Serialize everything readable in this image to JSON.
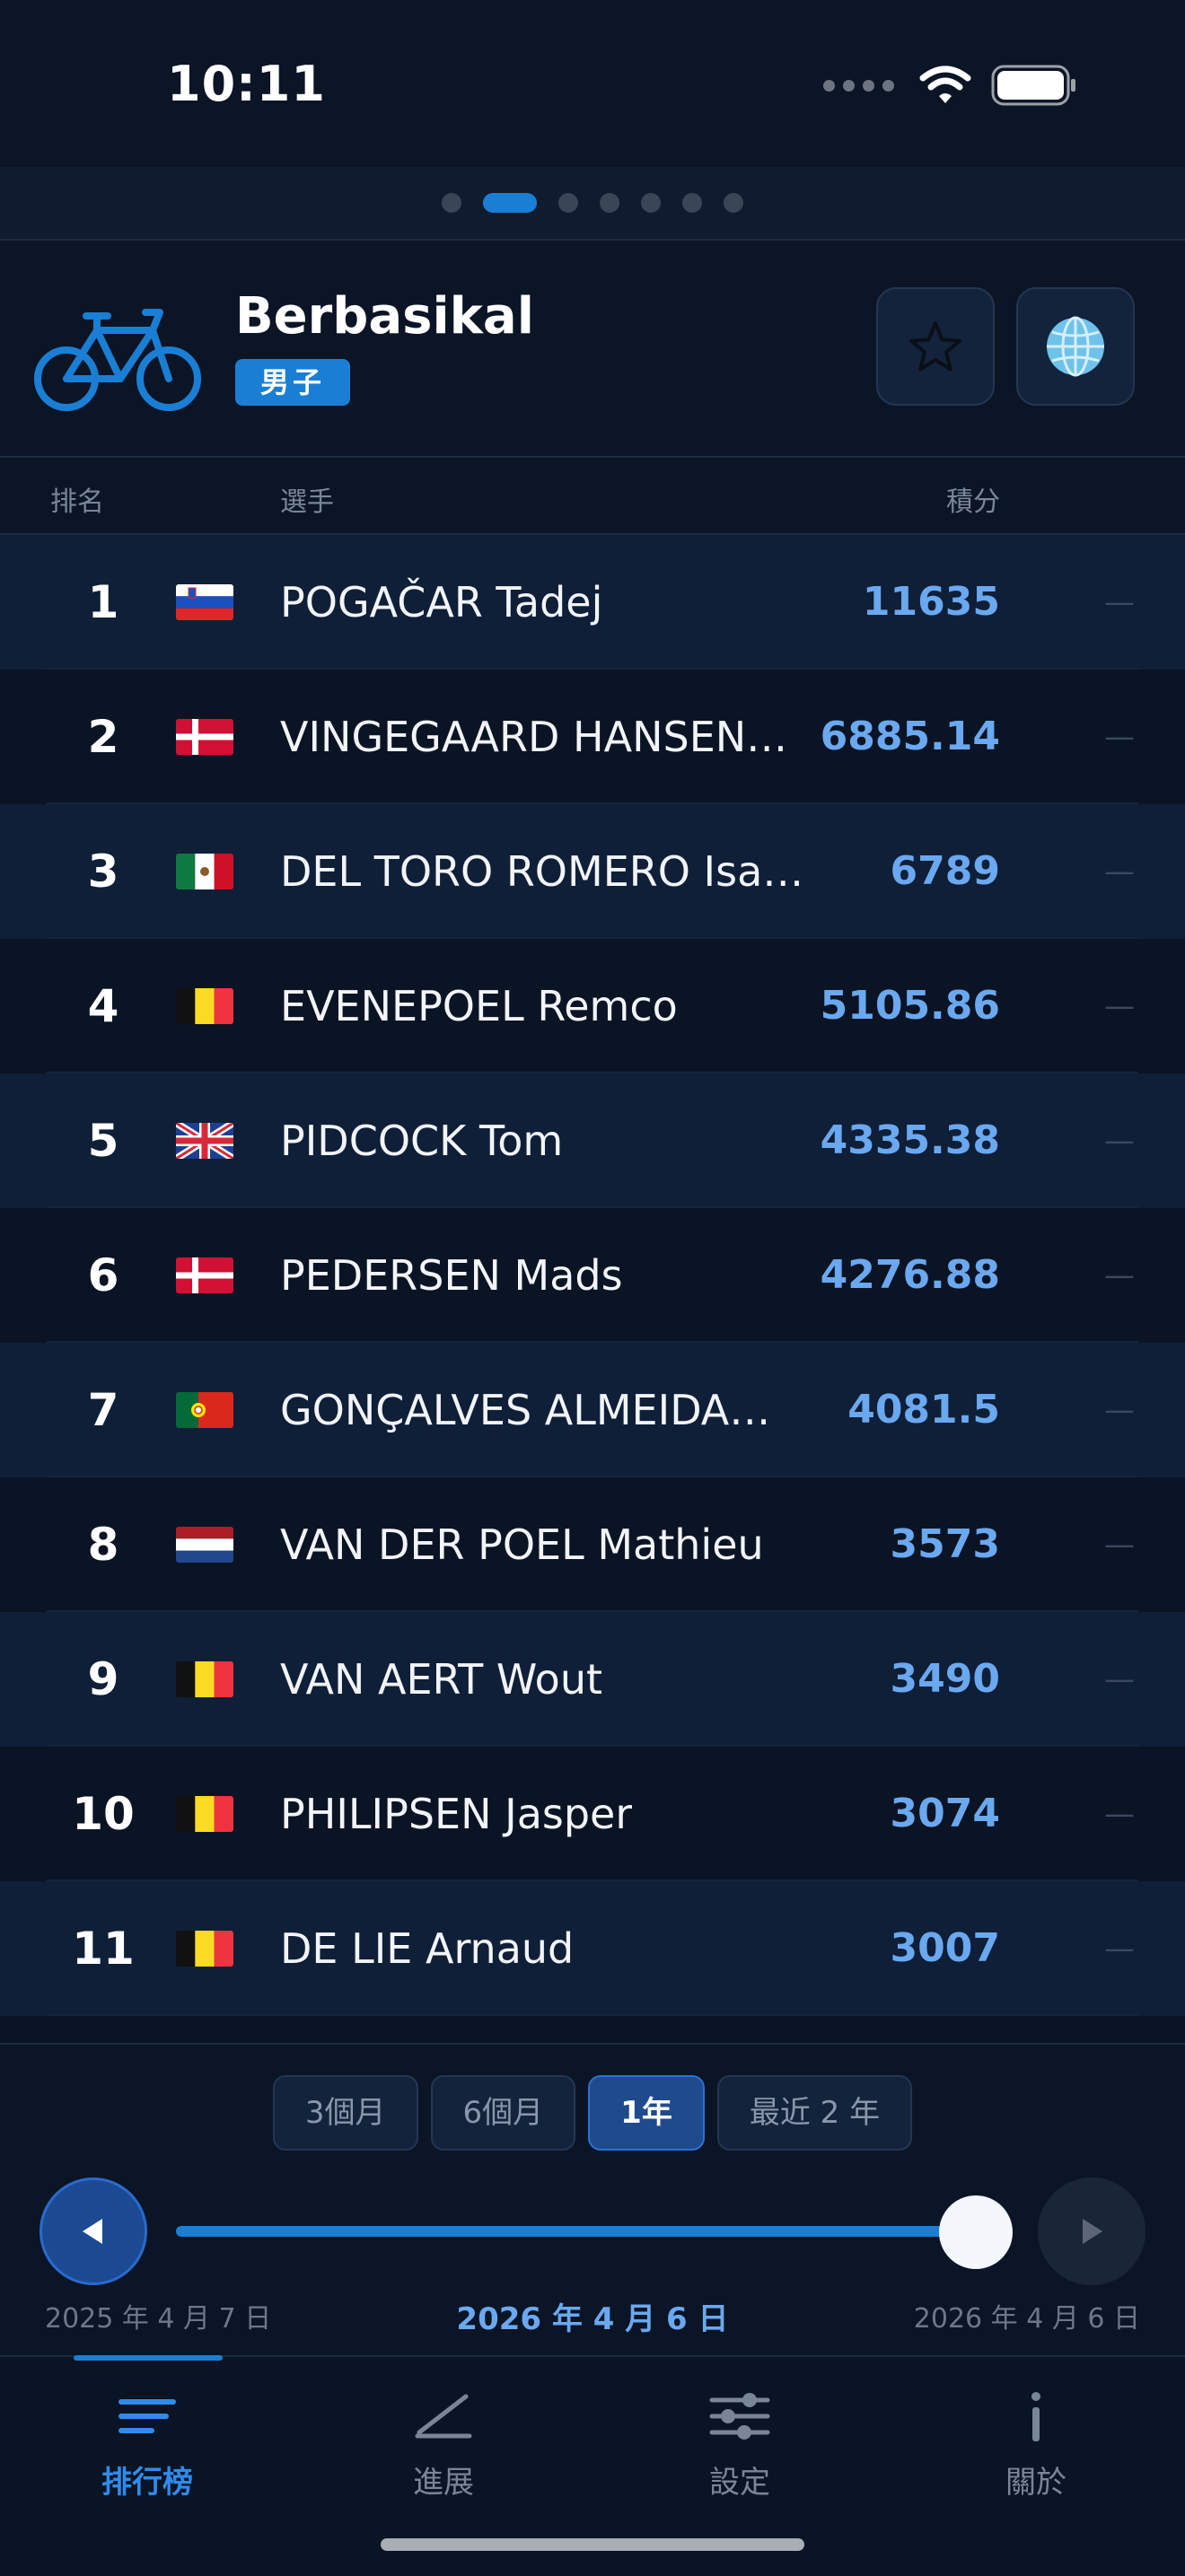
{
  "status_bar": {
    "time": "10:11"
  },
  "page_indicator": {
    "count": 7,
    "active_index": 1
  },
  "header": {
    "sport_name": "Berbasikal",
    "gender_badge": "男子",
    "star_icon": "star-icon",
    "globe_icon": "globe-icon"
  },
  "columns": {
    "rank": "排名",
    "rider": "選手",
    "points": "積分"
  },
  "riders": [
    {
      "rank": "1",
      "flag": "SI",
      "name": "POGAČAR Tadej",
      "points": "11635",
      "trend": "—"
    },
    {
      "rank": "2",
      "flag": "DK",
      "name": "VINGEGAARD HANSEN…",
      "points": "6885.14",
      "trend": "—"
    },
    {
      "rank": "3",
      "flag": "MX",
      "name": "DEL TORO ROMERO Isa…",
      "points": "6789",
      "trend": "—"
    },
    {
      "rank": "4",
      "flag": "BE",
      "name": "EVENEPOEL Remco",
      "points": "5105.86",
      "trend": "—"
    },
    {
      "rank": "5",
      "flag": "GB",
      "name": "PIDCOCK Tom",
      "points": "4335.38",
      "trend": "—"
    },
    {
      "rank": "6",
      "flag": "DK",
      "name": "PEDERSEN Mads",
      "points": "4276.88",
      "trend": "—"
    },
    {
      "rank": "7",
      "flag": "PT",
      "name": "GONÇALVES ALMEIDA…",
      "points": "4081.5",
      "trend": "—"
    },
    {
      "rank": "8",
      "flag": "NL",
      "name": "VAN DER POEL Mathieu",
      "points": "3573",
      "trend": "—"
    },
    {
      "rank": "9",
      "flag": "BE",
      "name": "VAN AERT Wout",
      "points": "3490",
      "trend": "—"
    },
    {
      "rank": "10",
      "flag": "BE",
      "name": "PHILIPSEN Jasper",
      "points": "3074",
      "trend": "—"
    },
    {
      "rank": "11",
      "flag": "BE",
      "name": "DE LIE Arnaud",
      "points": "3007",
      "trend": "—"
    }
  ],
  "periods": [
    {
      "label": "3個月",
      "active": false
    },
    {
      "label": "6個月",
      "active": false
    },
    {
      "label": "1年",
      "active": true
    },
    {
      "label": "最近 2 年",
      "active": false
    }
  ],
  "timeline": {
    "start_date": "2025 年 4 月 7 日",
    "current_date": "2026 年 4 月 6 日",
    "end_date": "2026 年 4 月 6 日",
    "position": 1.0
  },
  "tabs": [
    {
      "label": "排行榜",
      "icon": "list-icon",
      "active": true
    },
    {
      "label": "進展",
      "icon": "chart-line-icon",
      "active": false
    },
    {
      "label": "設定",
      "icon": "sliders-icon",
      "active": false
    },
    {
      "label": "關於",
      "icon": "info-icon",
      "active": false
    }
  ],
  "colors": {
    "accent": "#1a7fd4",
    "points": "#6aa8f0",
    "background": "#0b1424"
  }
}
